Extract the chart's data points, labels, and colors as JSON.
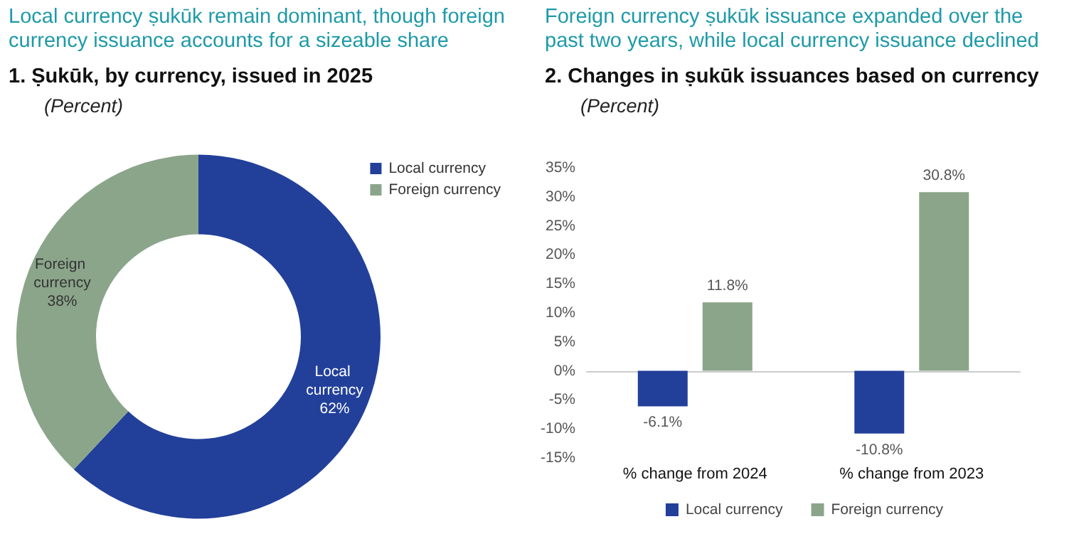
{
  "chart_data": [
    {
      "type": "donut",
      "title": "Local currency ṣukūk remain dominant, though foreign currency issuance accounts for a sizeable share",
      "subtitle": "1.  Ṣukūk, by currency, issued in 2025",
      "annotations": [
        "(Percent)"
      ],
      "categories": [
        "Local currency",
        "Foreign currency"
      ],
      "values": [
        62,
        38
      ],
      "colors": [
        "#22409a",
        "#8ba58a"
      ],
      "value_labels": [
        "62%",
        "38%"
      ],
      "legend": "top right"
    },
    {
      "type": "bar",
      "title": "Foreign currency ṣukūk issuance expanded over the past two years, while local currency issuance declined",
      "subtitle": "2.  Changes in ṣukūk issuances based on currency",
      "annotations": [
        "(Percent)"
      ],
      "categories": [
        "% change from 2024",
        "% change from 2023"
      ],
      "series": [
        {
          "name": "Local currency",
          "color": "#22409a",
          "values": [
            -6.1,
            -10.8
          ],
          "value_labels": [
            "-6.1%",
            "-10.8%"
          ]
        },
        {
          "name": "Foreign currency",
          "color": "#8ba58a",
          "values": [
            11.8,
            30.8
          ],
          "value_labels": [
            "11.8%",
            "30.8%"
          ]
        }
      ],
      "ylim": [
        -15,
        35
      ],
      "yticks": [
        {
          "value": -15,
          "label": "-15%"
        },
        {
          "value": -10,
          "label": "-10%"
        },
        {
          "value": -5,
          "label": "-5%"
        },
        {
          "value": 0,
          "label": "0%"
        },
        {
          "value": 5,
          "label": "5%"
        },
        {
          "value": 10,
          "label": "10%"
        },
        {
          "value": 15,
          "label": "15%"
        },
        {
          "value": 20,
          "label": "20%"
        },
        {
          "value": 25,
          "label": "25%"
        },
        {
          "value": 30,
          "label": "30%"
        },
        {
          "value": 35,
          "label": "35%"
        }
      ],
      "legend": "bottom"
    }
  ]
}
